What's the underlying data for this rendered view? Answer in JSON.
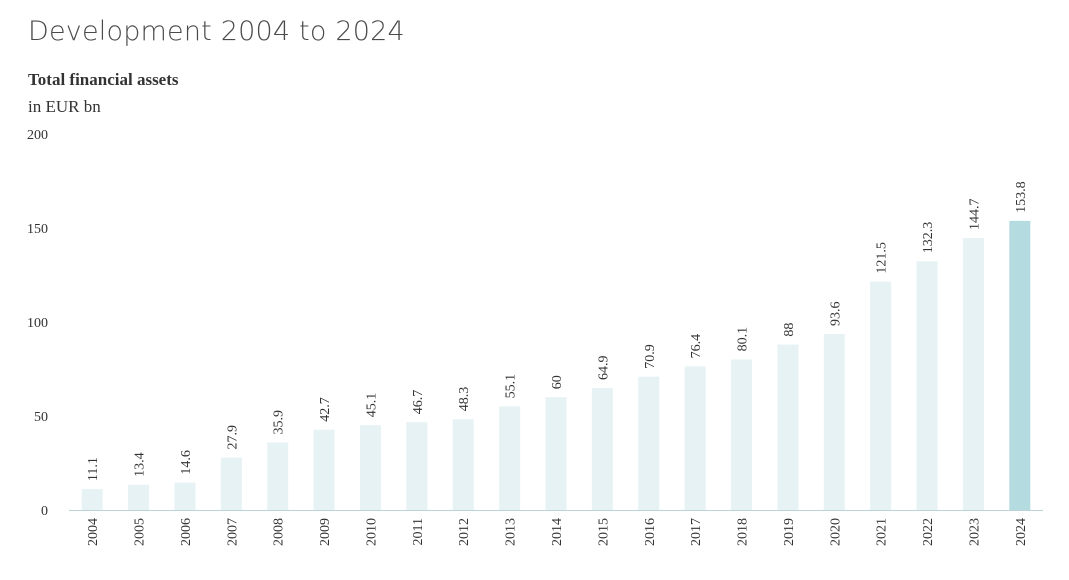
{
  "page": {
    "title": "Development 2004 to 2024"
  },
  "chart_data": {
    "type": "bar",
    "title": "Total financial assets",
    "subtitle": "in EUR bn",
    "xlabel": "",
    "ylabel": "",
    "ylim": [
      0,
      200
    ],
    "yticks": [
      0,
      50,
      100,
      150,
      200
    ],
    "grid": false,
    "categories": [
      "2004",
      "2005",
      "2006",
      "2007",
      "2008",
      "2009",
      "2010",
      "2011",
      "2012",
      "2013",
      "2014",
      "2015",
      "2016",
      "2017",
      "2018",
      "2019",
      "2020",
      "2021",
      "2022",
      "2023",
      "2024"
    ],
    "values": [
      11.1,
      13.4,
      14.6,
      27.9,
      35.9,
      42.7,
      45.1,
      46.7,
      48.3,
      55.1,
      60,
      64.9,
      70.9,
      76.4,
      80.1,
      88,
      93.6,
      121.5,
      132.3,
      144.7,
      153.8
    ],
    "data_labels": [
      "11.1",
      "13.4",
      "14.6",
      "27.9",
      "35.9",
      "42.7",
      "45.1",
      "46.7",
      "48.3",
      "55.1",
      "60",
      "64.9",
      "70.9",
      "76.4",
      "80.1",
      "88",
      "93.6",
      "121.5",
      "132.3",
      "144.7",
      "153.8"
    ],
    "colors": {
      "bar": "#e6f2f4",
      "highlight_bar": "#b3dbe0",
      "axis": "#b9d3d8"
    },
    "highlight_index": 20
  }
}
